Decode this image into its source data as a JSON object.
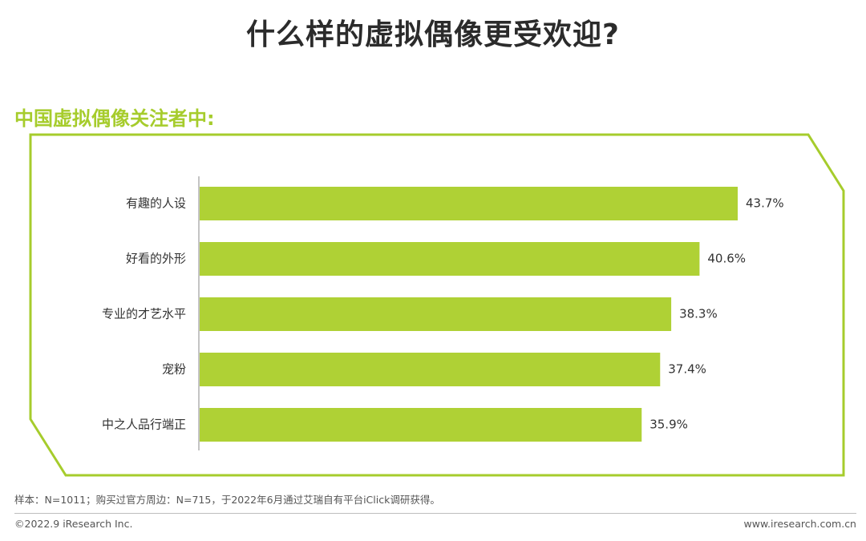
{
  "header": {
    "title": "什么样的虚拟偶像更受欢迎?",
    "subtitle": "中国虚拟偶像关注者中:"
  },
  "colors": {
    "accent": "#a6cc2c",
    "bar": "#afd135",
    "axis": "#888888"
  },
  "chart_data": {
    "type": "bar",
    "orientation": "horizontal",
    "categories": [
      "有趣的人设",
      "好看的外形",
      "专业的才艺水平",
      "宠粉",
      "中之人品行端正"
    ],
    "values": [
      43.7,
      40.6,
      38.3,
      37.4,
      35.9
    ],
    "value_labels": [
      "43.7%",
      "40.6%",
      "38.3%",
      "37.4%",
      "35.9%"
    ],
    "unit": "%",
    "grid": false,
    "legend": "none"
  },
  "footer": {
    "note": "样本：N=1011；购买过官方周边：N=715，于2022年6月通过艾瑞自有平台iClick调研获得。",
    "copyright": "©2022.9 iResearch Inc.",
    "website": "www.iresearch.com.cn"
  }
}
